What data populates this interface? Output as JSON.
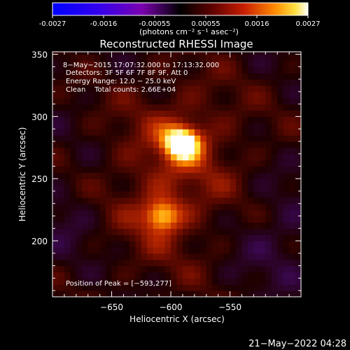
{
  "colorbar": {
    "ticks": [
      "-0.0027",
      "-0.0016",
      "-0.00055",
      "0.00055",
      "0.0016",
      "0.0027"
    ],
    "unit_label": "(photons cm⁻² s⁻¹ asec⁻²)",
    "range": [
      -0.0027,
      0.0027
    ]
  },
  "chart_data": {
    "type": "heatmap",
    "title": "Reconstructed RHESSI Image",
    "xlabel": "Heliocentric X (arcsec)",
    "ylabel": "Heliocentric Y (arcsec)",
    "xlim": [
      -700,
      -490
    ],
    "ylim": [
      155,
      352
    ],
    "x_ticks": [
      -650,
      -600,
      -550
    ],
    "y_ticks": [
      200,
      250,
      300,
      350
    ],
    "x_tick_labels": [
      "−650",
      "−600",
      "−550"
    ],
    "y_tick_labels": [
      "200",
      "250",
      "300",
      "350"
    ],
    "sources": [
      {
        "x": -593,
        "y": 277,
        "peak": 0.0027
      },
      {
        "x": -610,
        "y": 218,
        "peak": 0.0019
      }
    ],
    "annotations": [
      "8−May−2015 17:07:32.000 to 17:13:32.000",
      "Detectors: 3F 5F 6F 7F 8F 9F, Att 0",
      "Energy Range: 12.0 − 25.0 keV",
      "Clean    Total counts: 2.66E+04"
    ],
    "peak_label": "Position of Peak = [−593,277]"
  },
  "footer": {
    "timestamp": "21−May−2022 04:28"
  }
}
